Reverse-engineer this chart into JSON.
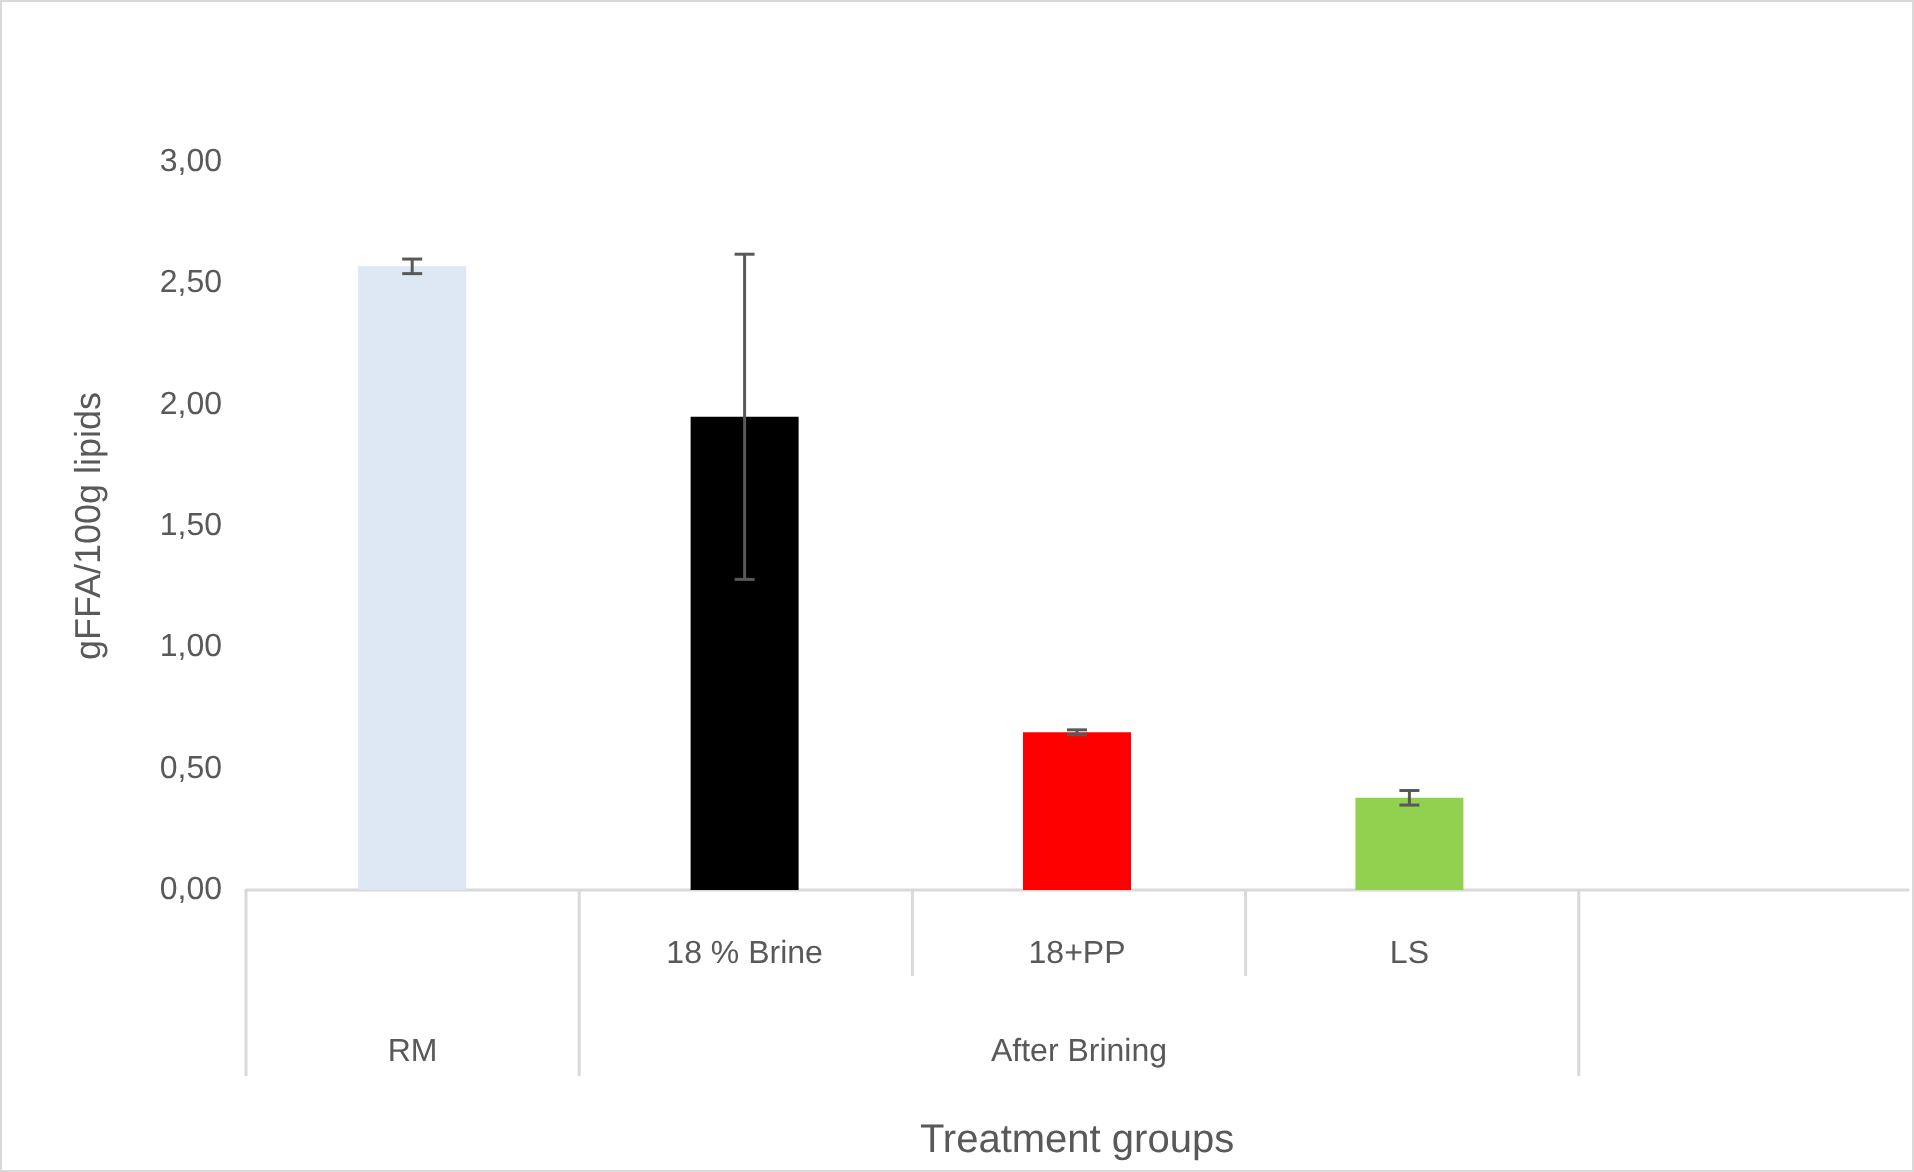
{
  "chart_data": {
    "type": "bar",
    "xlabel": "Treatment groups",
    "ylabel": "gFFA/100g lipids",
    "categories": [
      null,
      "18 % Brine",
      "18+PP",
      "LS",
      null
    ],
    "values": [
      2.57,
      1.95,
      0.65,
      0.38,
      null
    ],
    "colors": [
      "#dde8f4",
      "#000000",
      "#ff0000",
      "#92d050",
      "#92d050"
    ],
    "errors": [
      0.03,
      0.67,
      0.01,
      0.03,
      null
    ],
    "ylim": [
      0,
      3
    ],
    "yticks": [
      {
        "value": 0,
        "label": "0,00"
      },
      {
        "value": 0.5,
        "label": "0,50"
      },
      {
        "value": 1,
        "label": "1,00"
      },
      {
        "value": 1.5,
        "label": "1,50"
      },
      {
        "value": 2,
        "label": "2,00"
      },
      {
        "value": 2.5,
        "label": "2,50"
      },
      {
        "value": 3,
        "label": "3,00"
      }
    ],
    "annotations": [
      "RM",
      "After Brining"
    ],
    "grid": false
  }
}
